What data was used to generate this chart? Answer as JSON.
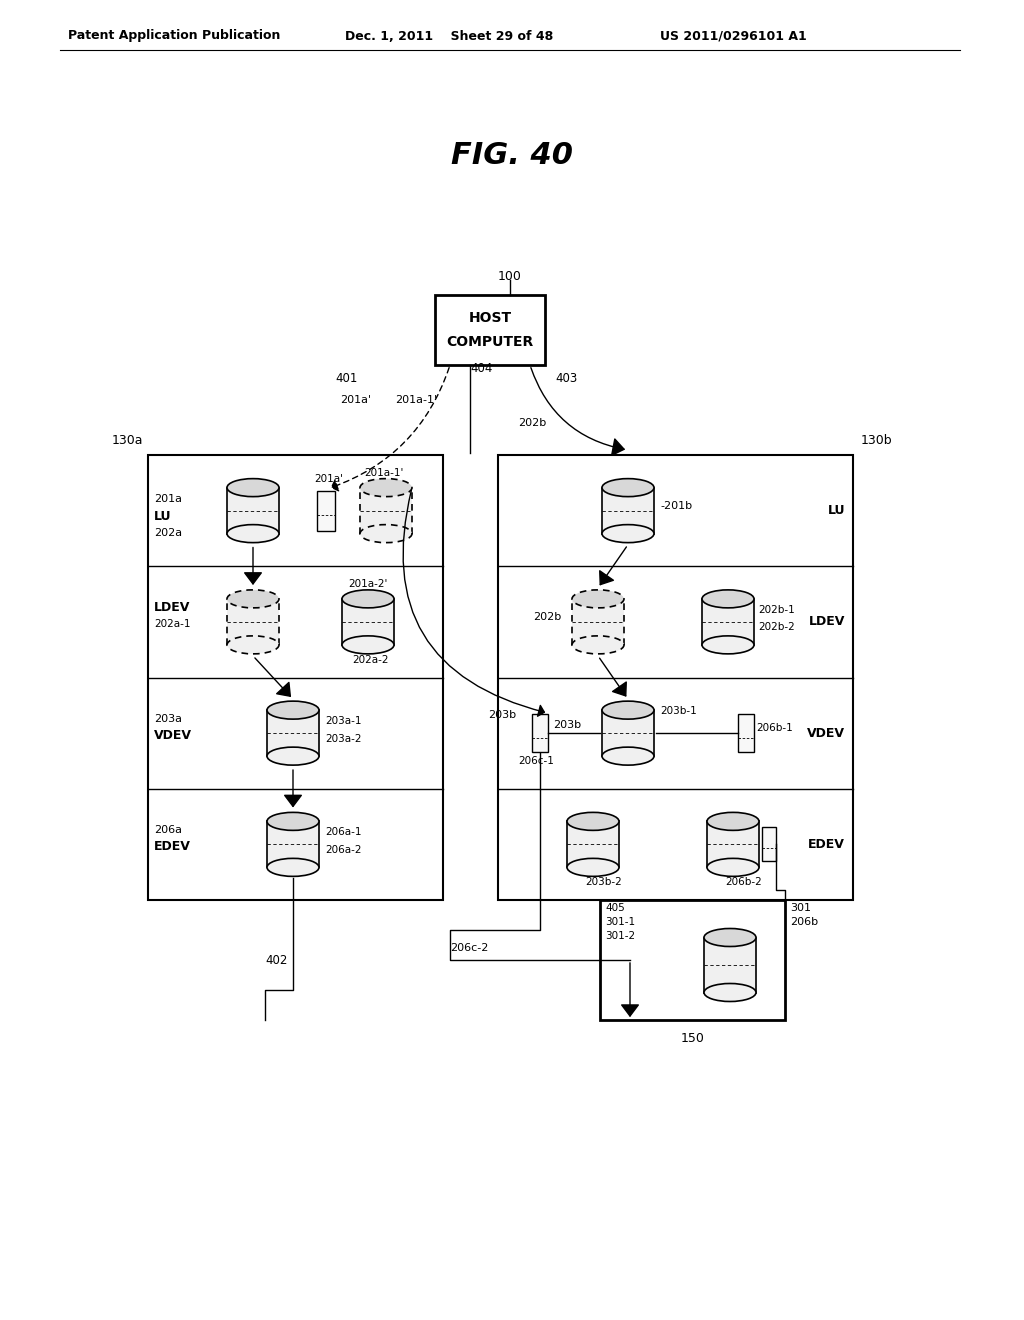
{
  "title": "FIG. 40",
  "header_left": "Patent Application Publication",
  "header_mid": "Dec. 1, 2011    Sheet 29 of 48",
  "header_right": "US 2011/0296101 A1",
  "bg_color": "#ffffff",
  "text_color": "#000000"
}
